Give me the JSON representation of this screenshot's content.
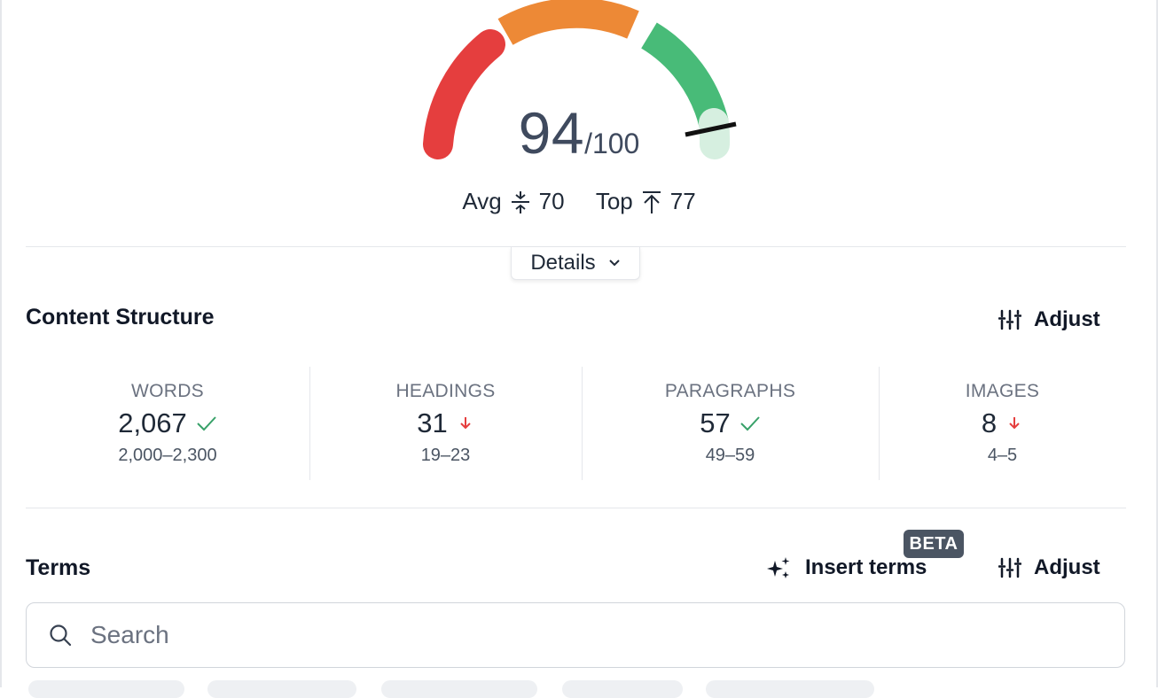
{
  "score": {
    "value": "94",
    "max": "/100",
    "fraction": 0.94
  },
  "benchmarks": {
    "avg_label": "Avg",
    "avg_value": "70",
    "top_label": "Top",
    "top_value": "77"
  },
  "details_button": "Details",
  "content_structure": {
    "title": "Content Structure",
    "adjust_label": "Adjust",
    "stats": [
      {
        "label": "WORDS",
        "value": "2,067",
        "status": "ok",
        "range": "2,000–2,300"
      },
      {
        "label": "HEADINGS",
        "value": "31",
        "status": "too-high",
        "range": "19–23"
      },
      {
        "label": "PARAGRAPHS",
        "value": "57",
        "status": "ok",
        "range": "49–59"
      },
      {
        "label": "IMAGES",
        "value": "8",
        "status": "too-high",
        "range": "4–5"
      }
    ]
  },
  "terms": {
    "title": "Terms",
    "insert_label": "Insert terms",
    "beta_badge": "BETA",
    "adjust_label": "Adjust",
    "search_placeholder": "Search"
  },
  "colors": {
    "red": "#e53e3e",
    "orange": "#ed8936",
    "green": "#48bb78",
    "green_light": "#d6efe0",
    "check": "#38a169",
    "down_arrow": "#e53e3e"
  }
}
